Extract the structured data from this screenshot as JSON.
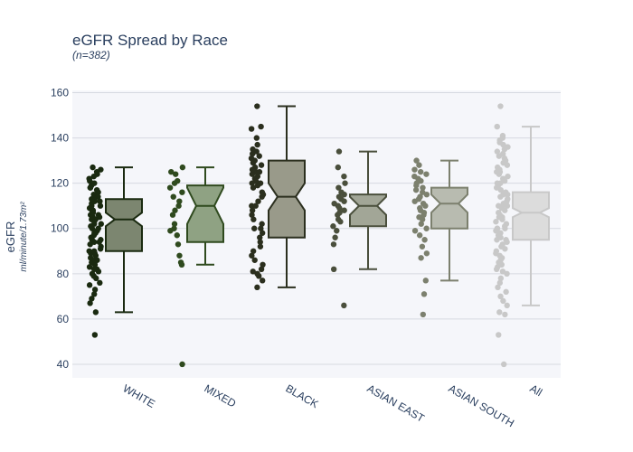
{
  "chart_data": {
    "type": "box",
    "title": "eGFR Spread by Race",
    "subtitle": "(n=382)",
    "ylabel": "eGFR",
    "ylabel_unit": "ml/minute/1.73m²",
    "ylim": [
      34,
      161
    ],
    "yticks": [
      40,
      60,
      80,
      100,
      120,
      140,
      160
    ],
    "grid": true,
    "notched": true,
    "show_points": "all",
    "categories": [
      "WHITE",
      "MIXED",
      "BLACK",
      "ASIAN EAST",
      "ASIAN SOUTH",
      "All"
    ],
    "series": [
      {
        "category": "WHITE",
        "min": 63,
        "q1": 90,
        "median": 104,
        "q3": 113,
        "max": 127,
        "notch": [
          101,
          107
        ],
        "color": "#1a2a10",
        "fill": "#7c8670",
        "points": [
          53,
          63,
          67,
          69,
          71,
          73,
          75,
          76,
          78,
          79,
          80,
          81,
          82,
          83,
          84,
          85,
          86,
          87,
          88,
          89,
          89,
          90,
          91,
          92,
          93,
          94,
          95,
          96,
          97,
          98,
          99,
          100,
          101,
          102,
          103,
          104,
          104,
          105,
          106,
          106,
          107,
          108,
          109,
          110,
          111,
          112,
          112,
          113,
          114,
          115,
          116,
          117,
          118,
          119,
          120,
          121,
          122,
          123,
          124,
          125,
          126,
          127,
          82,
          86,
          90,
          94,
          98,
          102,
          108,
          110,
          114,
          118,
          95,
          100,
          105
        ]
      },
      {
        "category": "MIXED",
        "min": 84,
        "q1": 94,
        "median": 110,
        "q3": 119,
        "max": 127,
        "notch": [
          102,
          118
        ],
        "color": "#2f4a1e",
        "fill": "#8fa283",
        "points": [
          40,
          84,
          85,
          88,
          93,
          97,
          99,
          100,
          102,
          106,
          108,
          110,
          112,
          114,
          116,
          118,
          120,
          121,
          124,
          125,
          127
        ]
      },
      {
        "category": "BLACK",
        "min": 74,
        "q1": 96,
        "median": 114,
        "q3": 130,
        "max": 154,
        "notch": [
          108,
          120
        ],
        "color": "#2b2f1e",
        "fill": "#999a8a",
        "points": [
          74,
          77,
          79,
          80,
          81,
          82,
          84,
          86,
          88,
          90,
          92,
          94,
          96,
          98,
          100,
          102,
          104,
          106,
          108,
          110,
          112,
          114,
          116,
          118,
          119,
          120,
          122,
          123,
          124,
          125,
          126,
          127,
          128,
          129,
          130,
          131,
          132,
          133,
          134,
          135,
          137,
          140,
          144,
          145,
          154,
          100,
          110,
          115,
          120,
          125,
          130,
          121,
          126
        ]
      },
      {
        "category": "ASIAN EAST",
        "min": 82,
        "q1": 101,
        "median": 110,
        "q3": 115,
        "max": 134,
        "notch": [
          106,
          114
        ],
        "color": "#4a4f3c",
        "fill": "#a2a697",
        "points": [
          66,
          82,
          93,
          96,
          99,
          101,
          103,
          104,
          106,
          107,
          108,
          109,
          110,
          111,
          112,
          113,
          114,
          115,
          116,
          118,
          120,
          123,
          127,
          134
        ]
      },
      {
        "category": "ASIAN SOUTH",
        "min": 77,
        "q1": 100,
        "median": 111,
        "q3": 118,
        "max": 130,
        "notch": [
          107,
          115
        ],
        "color": "#7c806e",
        "fill": "#b8bbb0",
        "points": [
          62,
          71,
          77,
          87,
          89,
          92,
          95,
          97,
          99,
          100,
          102,
          104,
          105,
          106,
          107,
          108,
          109,
          110,
          111,
          112,
          113,
          114,
          115,
          116,
          117,
          118,
          119,
          120,
          121,
          122,
          123,
          124,
          125,
          126,
          128,
          130
        ]
      },
      {
        "category": "All",
        "min": 66,
        "q1": 95,
        "median": 107,
        "q3": 116,
        "max": 145,
        "notch": [
          105,
          109
        ],
        "color": "#c8c8c8",
        "fill": "#dcdcdc",
        "points": [
          40,
          53,
          62,
          63,
          66,
          68,
          70,
          72,
          74,
          76,
          78,
          80,
          81,
          82,
          83,
          84,
          85,
          86,
          87,
          88,
          89,
          90,
          91,
          92,
          93,
          94,
          95,
          96,
          97,
          98,
          99,
          100,
          101,
          102,
          103,
          104,
          105,
          106,
          107,
          108,
          109,
          110,
          111,
          112,
          113,
          114,
          115,
          116,
          117,
          118,
          119,
          120,
          121,
          122,
          123,
          124,
          125,
          126,
          127,
          128,
          129,
          130,
          131,
          132,
          133,
          134,
          135,
          136,
          137,
          138,
          139,
          140,
          141,
          145,
          154,
          95,
          100,
          105,
          110,
          115,
          120,
          125,
          100,
          105,
          110
        ]
      }
    ]
  }
}
